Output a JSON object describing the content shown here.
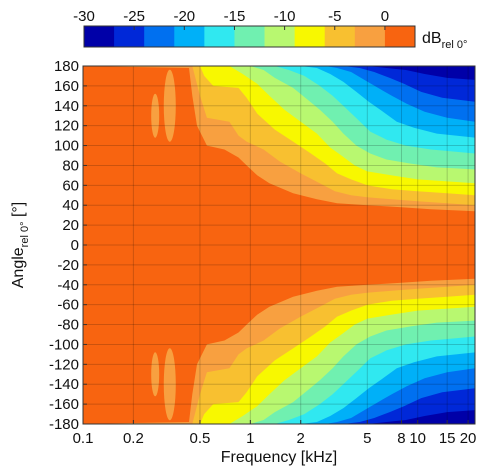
{
  "chart_data": {
    "type": "heatmap",
    "title": "",
    "xlabel": "Frequency [kHz]",
    "ylabel": "Angle",
    "ylabel_sub": "rel 0°",
    "ylabel_unit": " [°]",
    "x_scale": "log",
    "xlim": [
      0.1,
      22
    ],
    "ylim": [
      -180,
      180
    ],
    "x_ticks": [
      0.1,
      0.2,
      0.5,
      1,
      2,
      5,
      8,
      10,
      15,
      20
    ],
    "x_tick_labels": [
      "0.1",
      "0.2",
      "0.5",
      "1",
      "2",
      "5",
      "8",
      "10",
      "15",
      "20"
    ],
    "y_ticks": [
      -180,
      -160,
      -140,
      -120,
      -100,
      -80,
      -60,
      -40,
      -20,
      0,
      20,
      40,
      60,
      80,
      100,
      120,
      140,
      160,
      180
    ],
    "y_tick_labels": [
      "-180",
      "-160",
      "-140",
      "-120",
      "-100",
      "-80",
      "-60",
      "-40",
      "-20",
      "0",
      "20",
      "40",
      "60",
      "80",
      "100",
      "120",
      "140",
      "160",
      "180"
    ],
    "grid": true,
    "colorbar": {
      "position": "top",
      "label": "dB",
      "label_sub": "rel 0°",
      "ticks": [
        -30,
        -25,
        -20,
        -15,
        -10,
        -5,
        0
      ],
      "tick_labels": [
        "-30",
        "-25",
        "-20",
        "-15",
        "-10",
        "-5",
        "0"
      ],
      "range": [
        -30,
        3
      ],
      "levels": [
        {
          "min": -30,
          "max": -27,
          "color": "#0000a8"
        },
        {
          "min": -27,
          "max": -24,
          "color": "#0028d8"
        },
        {
          "min": -24,
          "max": -21,
          "color": "#0070f0"
        },
        {
          "min": -21,
          "max": -18,
          "color": "#00b0f8"
        },
        {
          "min": -18,
          "max": -15,
          "color": "#30e8f0"
        },
        {
          "min": -15,
          "max": -12,
          "color": "#70f0b0"
        },
        {
          "min": -12,
          "max": -9,
          "color": "#b8f870"
        },
        {
          "min": -9,
          "max": -6,
          "color": "#f8f800"
        },
        {
          "min": -6,
          "max": -3,
          "color": "#f8c030"
        },
        {
          "min": -3,
          "max": 0,
          "color": "#f8a040"
        },
        {
          "min": 0,
          "max": 3,
          "color": "#f86410"
        }
      ]
    },
    "series": [
      {
        "freq_kHz": 0.1,
        "level_at_180": 0
      },
      {
        "freq_kHz": 0.3,
        "level_at_180": -2
      },
      {
        "freq_kHz": 0.5,
        "level_at_180": -4
      },
      {
        "freq_kHz": 1,
        "level_at_180": -12
      },
      {
        "freq_kHz": 2,
        "level_at_180": -18
      },
      {
        "freq_kHz": 5,
        "level_at_180": -28
      },
      {
        "freq_kHz": 10,
        "level_at_180": -29
      },
      {
        "freq_kHz": 20,
        "level_at_180": -30
      }
    ]
  }
}
